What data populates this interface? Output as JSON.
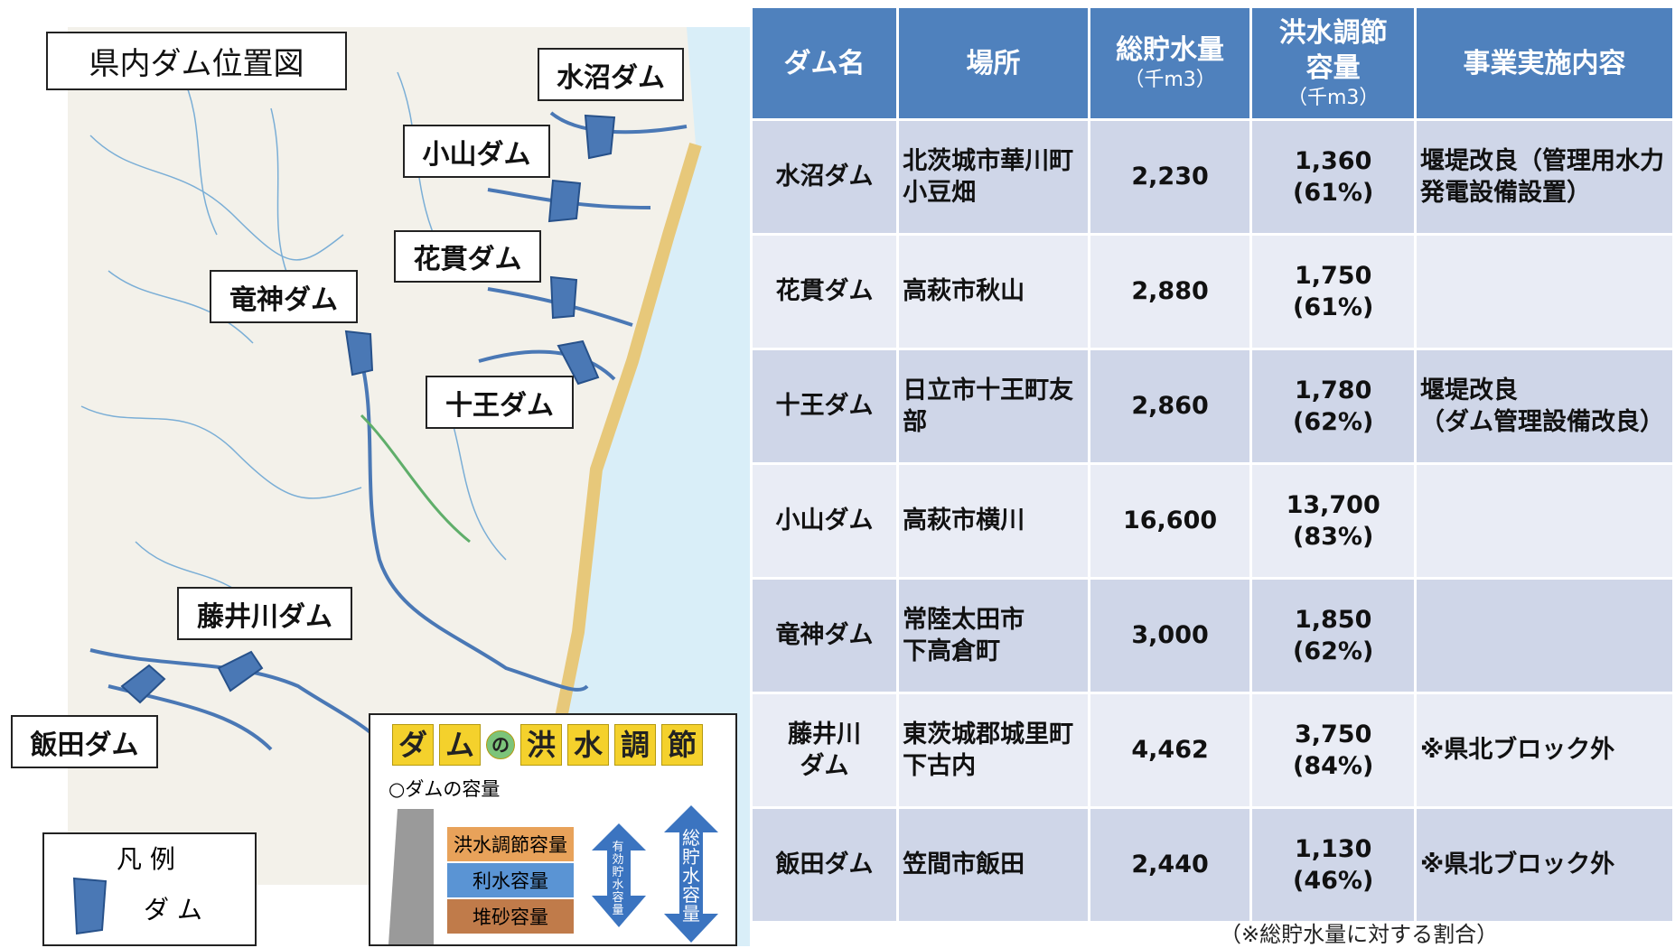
{
  "map": {
    "title": "県内ダム位置図",
    "dams": [
      "水沼ダム",
      "小山ダム",
      "花貫ダム",
      "竜神ダム",
      "十王ダム",
      "藤井川ダム",
      "飯田ダム"
    ],
    "legend": {
      "title": "凡 例",
      "item": "ダ ム"
    },
    "flood_panel": {
      "title": [
        "ダ",
        "ム",
        "の",
        "洪",
        "水",
        "調",
        "節"
      ],
      "subtitle": "○ダムの容量",
      "layers": [
        "洪水調節容量",
        "利水容量",
        "堆砂容量"
      ],
      "effective": "有効貯水容量",
      "total": "総貯水容量"
    }
  },
  "table": {
    "header": [
      {
        "main": "ダム名"
      },
      {
        "main": "場所"
      },
      {
        "main": "総貯水量",
        "unit": "（千m3）"
      },
      {
        "main": "洪水調節容量",
        "unit": "（千m3）"
      },
      {
        "main": "事業実施内容"
      }
    ],
    "rows": [
      {
        "name": [
          "水沼ダム"
        ],
        "place": [
          "北茨城市華川町",
          "小豆畑"
        ],
        "total": "2,230",
        "flood": "1,360",
        "ratio": "(61%)",
        "work": [
          "堰堤改良（管理用水力",
          "発電設備設置）"
        ]
      },
      {
        "name": [
          "花貫ダム"
        ],
        "place": [
          "高萩市秋山"
        ],
        "total": "2,880",
        "flood": "1,750",
        "ratio": "(61%)",
        "work": []
      },
      {
        "name": [
          "十王ダム"
        ],
        "place": [
          "日立市十王町友",
          "部"
        ],
        "total": "2,860",
        "flood": "1,780",
        "ratio": "(62%)",
        "work": [
          "堰堤改良",
          "（ダム管理設備改良）"
        ]
      },
      {
        "name": [
          "小山ダム"
        ],
        "place": [
          "高萩市横川"
        ],
        "total": "16,600",
        "flood": "13,700",
        "ratio": "(83%)",
        "work": []
      },
      {
        "name": [
          "竜神ダム"
        ],
        "place": [
          "常陸太田市",
          "下高倉町"
        ],
        "total": "3,000",
        "flood": "1,850",
        "ratio": "(62%)",
        "work": []
      },
      {
        "name": [
          "藤井川",
          "ダム"
        ],
        "place": [
          "東茨城郡城里町",
          "下古内"
        ],
        "total": "4,462",
        "flood": "3,750",
        "ratio": "(84%)",
        "work": [
          "※県北ブロック外"
        ]
      },
      {
        "name": [
          "飯田ダム"
        ],
        "place": [
          "笠間市飯田"
        ],
        "total": "2,440",
        "flood": "1,130",
        "ratio": "(46%)",
        "work": [
          "※県北ブロック外"
        ]
      }
    ]
  },
  "footnote": "（※総貯水量に対する割合）"
}
